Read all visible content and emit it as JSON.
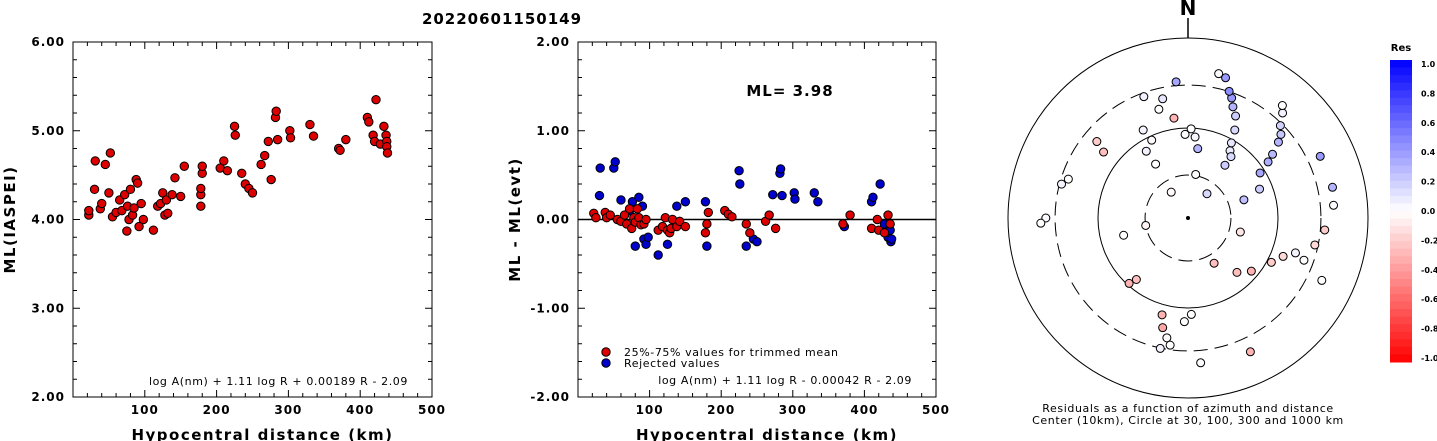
{
  "figure_title": "20220601150149",
  "colors": {
    "accepted": "#dd0000",
    "rejected": "#0000cc",
    "axis": "#000000"
  },
  "chart_data": [
    {
      "type": "scatter",
      "ylabel": "ML(IASPEI)",
      "xlabel": "Hypocentral distance (km)",
      "xlim": [
        0,
        500
      ],
      "ylim": [
        2.0,
        6.0
      ],
      "xticks": [
        "100",
        "200",
        "300",
        "400",
        "500"
      ],
      "yticks": [
        "2.00",
        "3.00",
        "4.00",
        "5.00",
        "6.00"
      ],
      "formula": "log A(nm) + 1.11 log R + 0.00189 R - 2.09",
      "series": [
        {
          "points": [
            [
              22,
              4.05
            ],
            [
              22,
              4.1
            ],
            [
              30,
              4.34
            ],
            [
              31,
              4.66
            ],
            [
              38,
              4.12
            ],
            [
              40,
              4.18
            ],
            [
              45,
              4.62
            ],
            [
              50,
              4.3
            ],
            [
              52,
              4.75
            ],
            [
              55,
              4.03
            ],
            [
              60,
              4.08
            ],
            [
              65,
              4.22
            ],
            [
              68,
              4.1
            ],
            [
              72,
              4.28
            ],
            [
              75,
              3.87
            ],
            [
              76,
              4.15
            ],
            [
              78,
              4.0
            ],
            [
              80,
              4.34
            ],
            [
              83,
              4.05
            ],
            [
              85,
              4.13
            ],
            [
              88,
              4.45
            ],
            [
              90,
              4.41
            ],
            [
              92,
              3.92
            ],
            [
              95,
              4.18
            ],
            [
              98,
              4.0
            ],
            [
              112,
              3.88
            ],
            [
              118,
              4.15
            ],
            [
              122,
              4.18
            ],
            [
              125,
              4.3
            ],
            [
              128,
              4.05
            ],
            [
              130,
              4.22
            ],
            [
              132,
              4.07
            ],
            [
              138,
              4.28
            ],
            [
              142,
              4.47
            ],
            [
              150,
              4.26
            ],
            [
              155,
              4.6
            ],
            [
              178,
              4.15
            ],
            [
              178,
              4.28
            ],
            [
              178,
              4.35
            ],
            [
              180,
              4.52
            ],
            [
              180,
              4.6
            ],
            [
              205,
              4.58
            ],
            [
              210,
              4.66
            ],
            [
              215,
              4.55
            ],
            [
              225,
              5.05
            ],
            [
              226,
              4.95
            ],
            [
              235,
              4.52
            ],
            [
              240,
              4.4
            ],
            [
              245,
              4.35
            ],
            [
              250,
              4.3
            ],
            [
              262,
              4.62
            ],
            [
              267,
              4.72
            ],
            [
              272,
              4.88
            ],
            [
              276,
              4.45
            ],
            [
              282,
              5.15
            ],
            [
              283,
              5.22
            ],
            [
              285,
              4.9
            ],
            [
              302,
              5.0
            ],
            [
              303,
              4.92
            ],
            [
              330,
              5.07
            ],
            [
              335,
              4.94
            ],
            [
              370,
              4.8
            ],
            [
              372,
              4.78
            ],
            [
              380,
              4.9
            ],
            [
              410,
              5.15
            ],
            [
              412,
              5.1
            ],
            [
              418,
              4.95
            ],
            [
              420,
              4.88
            ],
            [
              422,
              5.35
            ],
            [
              428,
              4.85
            ],
            [
              433,
              5.05
            ],
            [
              436,
              4.95
            ],
            [
              437,
              4.88
            ],
            [
              437,
              4.82
            ],
            [
              438,
              4.75
            ]
          ]
        }
      ]
    },
    {
      "type": "scatter",
      "ylabel": "ML - ML(evt)",
      "xlabel": "Hypocentral distance (km)",
      "xlim": [
        0,
        500
      ],
      "ylim": [
        -2.0,
        2.0
      ],
      "xticks": [
        "100",
        "200",
        "300",
        "400",
        "500"
      ],
      "yticks": [
        "-2.00",
        "-1.00",
        "0.00",
        "1.00",
        "2.00"
      ],
      "ml_label": "ML= 3.98",
      "legend": [
        "25%-75% values for trimmed mean",
        "Rejected values"
      ],
      "formula": "log A(nm) + 1.11 log R - 0.00042 R - 2.09",
      "series": [
        {
          "name": "25%-75% values for trimmed mean",
          "points": [
            [
              22,
              0.07
            ],
            [
              25,
              0.02
            ],
            [
              38,
              0.08
            ],
            [
              40,
              0.02
            ],
            [
              45,
              0.05
            ],
            [
              55,
              0.0
            ],
            [
              60,
              -0.02
            ],
            [
              65,
              0.05
            ],
            [
              68,
              -0.05
            ],
            [
              72,
              0.12
            ],
            [
              75,
              -0.1
            ],
            [
              78,
              0.02
            ],
            [
              80,
              -0.03
            ],
            [
              83,
              0.12
            ],
            [
              85,
              0.02
            ],
            [
              88,
              -0.06
            ],
            [
              92,
              -0.05
            ],
            [
              95,
              0.0
            ],
            [
              112,
              -0.12
            ],
            [
              118,
              -0.08
            ],
            [
              122,
              0.02
            ],
            [
              125,
              -0.12
            ],
            [
              128,
              -0.15
            ],
            [
              130,
              -0.1
            ],
            [
              132,
              0.0
            ],
            [
              138,
              -0.08
            ],
            [
              142,
              -0.02
            ],
            [
              150,
              -0.08
            ],
            [
              178,
              -0.15
            ],
            [
              180,
              -0.05
            ],
            [
              182,
              0.08
            ],
            [
              205,
              0.1
            ],
            [
              210,
              0.06
            ],
            [
              215,
              0.03
            ],
            [
              235,
              -0.05
            ],
            [
              240,
              -0.15
            ],
            [
              262,
              -0.02
            ],
            [
              267,
              0.05
            ],
            [
              276,
              -0.1
            ],
            [
              370,
              -0.05
            ],
            [
              380,
              0.05
            ],
            [
              410,
              -0.1
            ],
            [
              418,
              0.0
            ],
            [
              420,
              -0.12
            ],
            [
              428,
              -0.15
            ],
            [
              433,
              0.05
            ],
            [
              436,
              -0.05
            ]
          ]
        },
        {
          "name": "Rejected values",
          "points": [
            [
              30,
              0.27
            ],
            [
              31,
              0.58
            ],
            [
              50,
              0.58
            ],
            [
              52,
              0.65
            ],
            [
              60,
              0.22
            ],
            [
              72,
              0.1
            ],
            [
              76,
              0.2
            ],
            [
              80,
              -0.3
            ],
            [
              85,
              0.25
            ],
            [
              90,
              0.15
            ],
            [
              92,
              -0.22
            ],
            [
              95,
              -0.28
            ],
            [
              98,
              -0.2
            ],
            [
              112,
              -0.4
            ],
            [
              125,
              -0.28
            ],
            [
              138,
              0.15
            ],
            [
              150,
              0.2
            ],
            [
              178,
              0.2
            ],
            [
              180,
              -0.3
            ],
            [
              225,
              0.55
            ],
            [
              226,
              0.4
            ],
            [
              235,
              -0.3
            ],
            [
              245,
              -0.22
            ],
            [
              250,
              -0.25
            ],
            [
              272,
              0.28
            ],
            [
              282,
              0.52
            ],
            [
              283,
              0.57
            ],
            [
              285,
              0.27
            ],
            [
              302,
              0.3
            ],
            [
              303,
              0.23
            ],
            [
              330,
              0.3
            ],
            [
              335,
              0.2
            ],
            [
              372,
              -0.08
            ],
            [
              410,
              0.2
            ],
            [
              412,
              0.25
            ],
            [
              422,
              0.4
            ],
            [
              428,
              -0.05
            ],
            [
              433,
              -0.2
            ],
            [
              436,
              -0.12
            ],
            [
              437,
              -0.25
            ],
            [
              438,
              -0.22
            ]
          ]
        }
      ]
    },
    {
      "type": "polar",
      "north_label": "N",
      "caption_line1": "Residuals as a function of azimuth and distance",
      "caption_line2": "Center (10km), Circle at 30, 100, 300 and 1000 km",
      "colorbar_title": "Res",
      "colorbar_ticks": [
        "1.0",
        "0.8",
        "0.6",
        "0.4",
        "0.2",
        "0.0",
        "-0.2",
        "-0.4",
        "-0.6",
        "-0.8",
        "-1.0"
      ],
      "stations": [
        [
          -33,
          -0.02
        ],
        [
          -31,
          0.0
        ],
        [
          -32,
          0.05
        ],
        [
          -25,
          -0.02
        ],
        [
          -27,
          0.04
        ],
        [
          -52,
          -0.25
        ],
        [
          -50,
          -0.2
        ],
        [
          -72,
          0.0
        ],
        [
          -75,
          0.04
        ],
        [
          -90,
          0.02
        ],
        [
          -92,
          0.0
        ],
        [
          -100,
          -0.05
        ],
        [
          -105,
          0.0
        ],
        [
          -140,
          -0.25
        ],
        [
          -138,
          -0.3
        ],
        [
          -165,
          -0.3
        ],
        [
          -167,
          -0.35
        ],
        [
          -170,
          -0.02
        ],
        [
          -172,
          0.0
        ],
        [
          -168,
          0.05
        ],
        [
          175,
          0.02
        ],
        [
          155,
          -0.3
        ],
        [
          150,
          -0.25
        ],
        [
          138,
          -0.25
        ],
        [
          130,
          -0.3
        ],
        [
          118,
          -0.2
        ],
        [
          112,
          -0.15
        ],
        [
          108,
          0.05
        ],
        [
          110,
          0.0
        ],
        [
          102,
          -0.15
        ],
        [
          95,
          -0.2
        ],
        [
          85,
          0.02
        ],
        [
          78,
          0.3
        ],
        [
          72,
          0.25
        ],
        [
          68,
          0.2
        ],
        [
          58,
          0.35
        ],
        [
          55,
          0.32
        ],
        [
          53,
          0.28
        ],
        [
          50,
          0.3
        ],
        [
          48,
          0.22
        ],
        [
          45,
          0.18
        ],
        [
          42,
          0.05
        ],
        [
          40,
          0.0
        ],
        [
          38,
          0.15
        ],
        [
          35,
          0.2
        ],
        [
          32,
          0.08
        ],
        [
          30,
          0.1
        ],
        [
          28,
          0.15
        ],
        [
          25,
          0.2
        ],
        [
          22,
          0.3
        ],
        [
          20,
          0.4
        ],
        [
          18,
          0.45
        ],
        [
          15,
          0.4
        ],
        [
          12,
          0.02
        ],
        [
          10,
          0.0
        ],
        [
          8,
          0.3
        ],
        [
          5,
          0.03
        ],
        [
          2,
          0.0
        ],
        [
          -8,
          -0.3
        ],
        [
          -15,
          0.0
        ],
        [
          -12,
          0.1
        ],
        [
          -20,
          0.05
        ],
        [
          -5,
          0.35
        ],
        [
          65,
          0.4
        ],
        [
          115,
          0.0
        ],
        [
          105,
          -0.1
        ],
        [
          35,
          0.15
        ],
        [
          -2,
          0.0
        ],
        [
          178,
          0.0
        ],
        [
          -178,
          0.0
        ]
      ]
    }
  ]
}
